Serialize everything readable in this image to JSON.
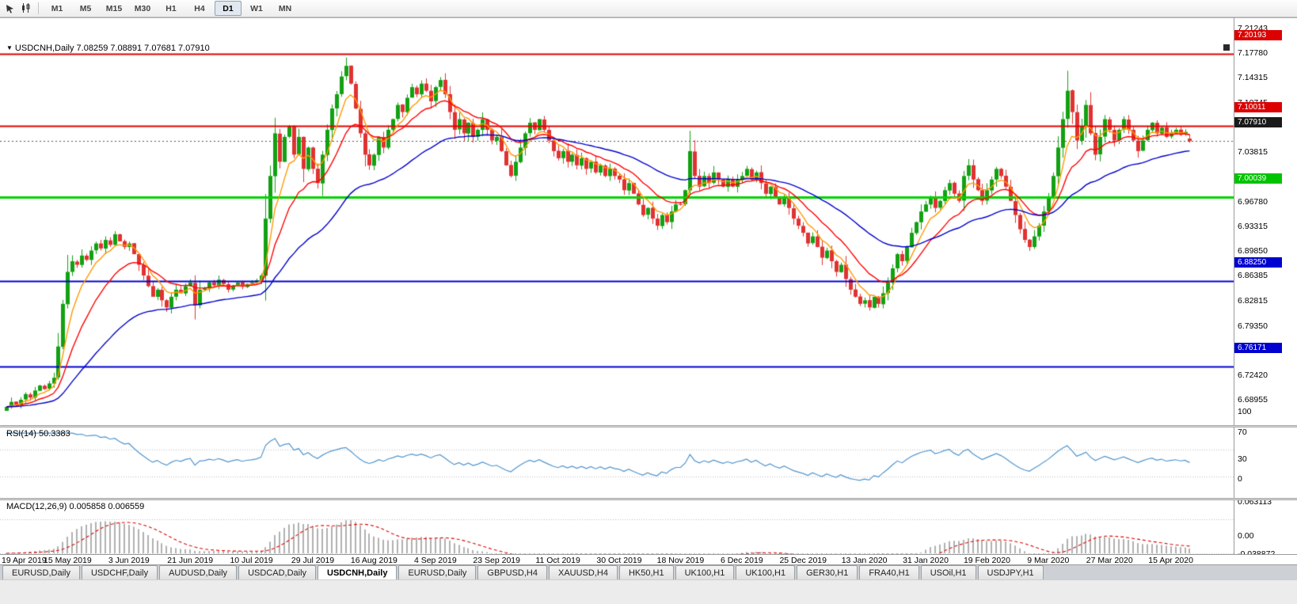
{
  "toolbar": {
    "timeframes": [
      {
        "label": "M1",
        "active": false
      },
      {
        "label": "M5",
        "active": false
      },
      {
        "label": "M15",
        "active": false
      },
      {
        "label": "M30",
        "active": false
      },
      {
        "label": "H1",
        "active": false
      },
      {
        "label": "H4",
        "active": false
      },
      {
        "label": "D1",
        "active": true
      },
      {
        "label": "W1",
        "active": false
      },
      {
        "label": "MN",
        "active": false
      }
    ]
  },
  "chart": {
    "collapse_icon": "▼",
    "symbol_title": "USDCNH,Daily",
    "ohlc_text": "7.08259 7.08891 7.07681 7.07910",
    "rsi_label": "RSI(14) 50.3383",
    "macd_label": "MACD(12,26,9) 0.005858 0.006559"
  },
  "axes": {
    "price_ticks": [
      "7.21243",
      "7.17780",
      "7.14315",
      "7.10745",
      "7.03815",
      "6.96780",
      "6.93315",
      "6.89850",
      "6.86385",
      "6.82815",
      "6.79350",
      "6.72420",
      "6.68955"
    ],
    "price_badges": [
      {
        "text": "7.20193",
        "price": 7.20193,
        "bg": "#dd0000"
      },
      {
        "text": "7.10011",
        "price": 7.10011,
        "bg": "#dd0000"
      },
      {
        "text": "7.07910",
        "price": 7.0791,
        "bg": "#1a1a1a"
      },
      {
        "text": "7.00039",
        "price": 7.00039,
        "bg": "#00c400"
      },
      {
        "text": "6.88250",
        "price": 6.8825,
        "bg": "#0000d0"
      },
      {
        "text": "6.76171",
        "price": 6.76171,
        "bg": "#0000d0"
      }
    ],
    "rsi_ticks": [
      {
        "text": "100",
        "v": 100
      },
      {
        "text": "70",
        "v": 70
      },
      {
        "text": "30",
        "v": 30
      },
      {
        "text": "0",
        "v": 0
      }
    ],
    "macd_ticks": [
      {
        "text": "0.063113",
        "v": 0.063113
      },
      {
        "text": "0.00",
        "v": 0
      },
      {
        "text": "-0.038872",
        "v": -0.038872
      }
    ],
    "dates": [
      "19 Apr 2019",
      "15 May 2019",
      "3 Jun 2019",
      "21 Jun 2019",
      "10 Jul 2019",
      "29 Jul 2019",
      "16 Aug 2019",
      "4 Sep 2019",
      "23 Sep 2019",
      "11 Oct 2019",
      "30 Oct 2019",
      "18 Nov 2019",
      "6 Dec 2019",
      "25 Dec 2019",
      "13 Jan 2020",
      "31 Jan 2020",
      "19 Feb 2020",
      "9 Mar 2020",
      "27 Mar 2020",
      "15 Apr 2020"
    ]
  },
  "chart_data": {
    "type": "candlestick",
    "symbol": "USDCNH",
    "timeframe": "Daily",
    "first_open": 6.7,
    "closes": [
      6.705,
      6.712,
      6.708,
      6.715,
      6.723,
      6.718,
      6.728,
      6.735,
      6.73,
      6.738,
      6.746,
      6.79,
      6.85,
      6.895,
      6.91,
      6.905,
      6.918,
      6.912,
      6.925,
      6.935,
      6.928,
      6.94,
      6.933,
      6.948,
      6.938,
      6.93,
      6.935,
      6.92,
      6.905,
      6.89,
      6.875,
      6.86,
      6.87,
      6.855,
      6.845,
      6.86,
      6.87,
      6.865,
      6.875,
      6.88,
      6.848,
      6.87,
      6.872,
      6.88,
      6.876,
      6.884,
      6.878,
      6.87,
      6.876,
      6.88,
      6.874,
      6.878,
      6.88,
      6.883,
      6.89,
      6.97,
      7.03,
      7.09,
      7.05,
      7.085,
      7.1,
      7.06,
      7.085,
      7.04,
      7.07,
      7.04,
      7.02,
      7.06,
      7.095,
      7.125,
      7.145,
      7.17,
      7.185,
      7.16,
      7.125,
      7.09,
      7.06,
      7.045,
      7.06,
      7.085,
      7.07,
      7.095,
      7.11,
      7.13,
      7.12,
      7.14,
      7.155,
      7.145,
      7.16,
      7.15,
      7.135,
      7.155,
      7.165,
      7.145,
      7.12,
      7.095,
      7.11,
      7.09,
      7.105,
      7.085,
      7.095,
      7.11,
      7.095,
      7.08,
      7.085,
      7.065,
      7.045,
      7.03,
      7.05,
      7.07,
      7.09,
      7.105,
      7.095,
      7.11,
      7.095,
      7.08,
      7.065,
      7.055,
      7.065,
      7.05,
      7.06,
      7.045,
      7.055,
      7.04,
      7.05,
      7.035,
      7.045,
      7.03,
      7.04,
      7.03,
      7.025,
      7.01,
      7.02,
      7.005,
      6.99,
      6.975,
      6.985,
      6.97,
      6.96,
      6.975,
      6.965,
      6.98,
      6.99,
      6.99,
      7.01,
      7.065,
      7.03,
      7.015,
      7.03,
      7.02,
      7.035,
      7.025,
      7.015,
      7.025,
      7.015,
      7.025,
      7.03,
      7.04,
      7.025,
      7.035,
      7.02,
      7.005,
      7.015,
      7.0,
      6.99,
      7.0,
      6.985,
      6.97,
      6.96,
      6.95,
      6.935,
      6.945,
      6.93,
      6.915,
      6.925,
      6.91,
      6.895,
      6.905,
      6.885,
      6.87,
      6.86,
      6.85,
      6.855,
      6.845,
      6.86,
      6.85,
      6.865,
      6.88,
      6.9,
      6.92,
      6.91,
      6.93,
      6.95,
      6.965,
      6.98,
      6.99,
      7.0,
      6.985,
      6.995,
      7.01,
      7.02,
      7.005,
      6.995,
      7.03,
      7.045,
      7.025,
      7.01,
      6.995,
      7.01,
      7.025,
      7.04,
      7.03,
      7.015,
      6.995,
      6.975,
      6.955,
      6.94,
      6.93,
      6.945,
      6.96,
      6.98,
      7.0,
      7.03,
      7.07,
      7.11,
      7.15,
      7.12,
      7.08,
      7.1,
      7.13,
      7.09,
      7.06,
      7.085,
      7.11,
      7.095,
      7.08,
      7.095,
      7.11,
      7.095,
      7.08,
      7.065,
      7.08,
      7.095,
      7.105,
      7.09,
      7.098,
      7.085,
      7.09,
      7.095,
      7.088,
      7.092,
      7.0791
    ],
    "current_bar": {
      "open": 7.08259,
      "high": 7.08891,
      "low": 7.07681,
      "close": 7.0791
    },
    "wick_overrides": [
      {
        "i": 11,
        "l": 6.743
      },
      {
        "i": 40,
        "l": 6.828
      },
      {
        "i": 57,
        "h": 7.112
      },
      {
        "i": 72,
        "h": 7.1968
      },
      {
        "i": 145,
        "h": 7.0935
      },
      {
        "i": 183,
        "l": 6.8405
      },
      {
        "i": 225,
        "h": 7.178
      }
    ],
    "h_lines": [
      {
        "price": 7.20193,
        "color": "#e00000",
        "width": 2
      },
      {
        "price": 7.10011,
        "color": "#e00000",
        "width": 2
      },
      {
        "price": 7.00039,
        "color": "#00d300",
        "width": 3
      },
      {
        "price": 6.8825,
        "color": "#0000d0",
        "width": 2
      },
      {
        "price": 6.76171,
        "color": "#0000d0",
        "width": 2
      }
    ],
    "bid_line": {
      "price": 7.0791,
      "color": "#555555"
    },
    "moving_averages": [
      {
        "period": 6,
        "color": "#ff9900"
      },
      {
        "period": 14,
        "color": "#ff0000"
      },
      {
        "period": 40,
        "color": "#0000cc"
      }
    ],
    "indicators": {
      "rsi": {
        "period": 14,
        "value": 50.3383,
        "levels": [
          70,
          30
        ],
        "line_color": "#4f94cd"
      },
      "macd": {
        "fast": 12,
        "slow": 26,
        "signal": 9,
        "values": [
          0.005858,
          0.006559
        ],
        "histogram_color": "#b0b0b0",
        "signal_color": "#e00000"
      }
    },
    "colors": {
      "bull": "#12a112",
      "bear": "#e03232",
      "background": "#ffffff"
    }
  },
  "tabs": [
    {
      "label": "EURUSD,Daily",
      "active": false
    },
    {
      "label": "USDCHF,Daily",
      "active": false
    },
    {
      "label": "AUDUSD,Daily",
      "active": false
    },
    {
      "label": "USDCAD,Daily",
      "active": false
    },
    {
      "label": "USDCNH,Daily",
      "active": true
    },
    {
      "label": "EURUSD,Daily",
      "active": false
    },
    {
      "label": "GBPUSD,H4",
      "active": false
    },
    {
      "label": "XAUUSD,H4",
      "active": false
    },
    {
      "label": "HK50,H1",
      "active": false
    },
    {
      "label": "UK100,H1",
      "active": false
    },
    {
      "label": "UK100,H1",
      "active": false
    },
    {
      "label": "GER30,H1",
      "active": false
    },
    {
      "label": "FRA40,H1",
      "active": false
    },
    {
      "label": "USOil,H1",
      "active": false
    },
    {
      "label": "USDJPY,H1",
      "active": false
    }
  ]
}
